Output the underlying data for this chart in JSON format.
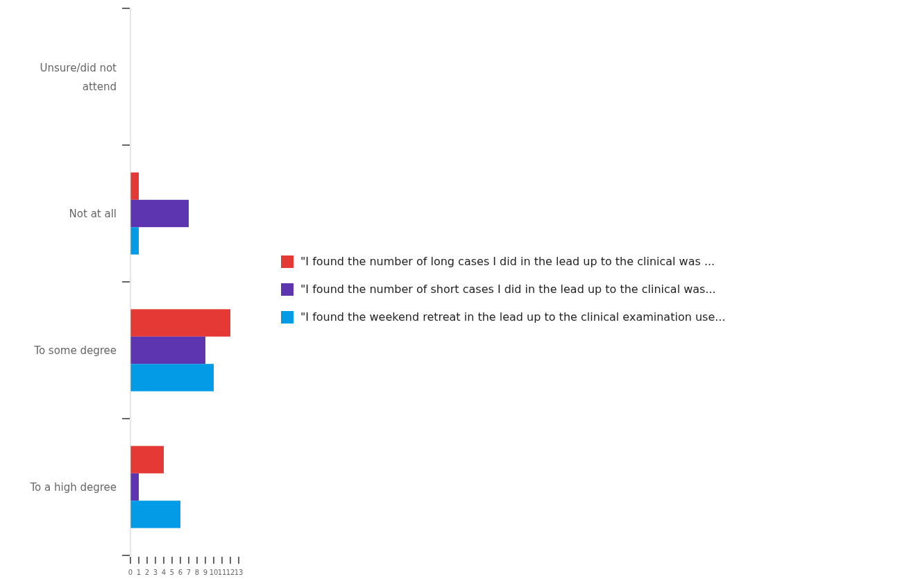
{
  "chart_data": {
    "type": "bar",
    "orientation": "horizontal",
    "categories": [
      "Unsure/did not attend",
      "Not at all",
      "To some degree",
      "To a high degree"
    ],
    "series": [
      {
        "name": "\"I found the number of long cases I did in the lead up to the clinical was ...",
        "color": "#e53935",
        "values": [
          0,
          1,
          12,
          4
        ]
      },
      {
        "name": "\"I found the number of short cases I did in the lead up to the clinical was...",
        "color": "#5e35b1",
        "values": [
          0,
          7,
          9,
          1
        ]
      },
      {
        "name": "\"I found the weekend retreat in the lead up to the clinical examination use...",
        "color": "#039be5",
        "values": [
          0,
          1,
          10,
          6
        ]
      }
    ],
    "xlim": [
      0,
      13
    ],
    "xticks": [
      0,
      1,
      2,
      3,
      4,
      5,
      6,
      7,
      8,
      9,
      10,
      11,
      12,
      13
    ],
    "grid": false,
    "legend": "right"
  }
}
